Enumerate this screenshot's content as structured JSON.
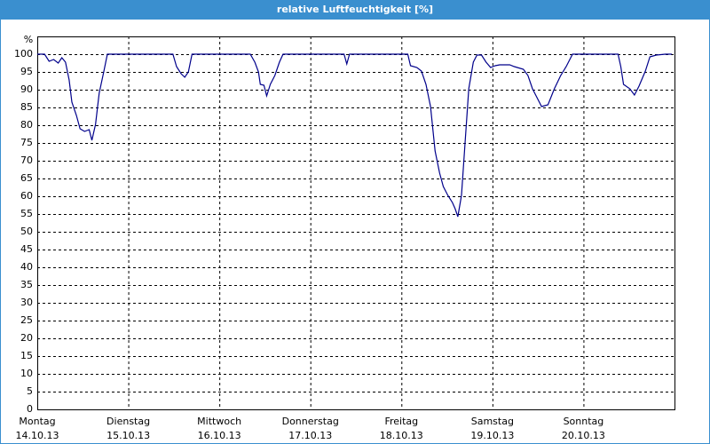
{
  "chart_data": {
    "type": "line",
    "title": "relative Luftfeuchtigkeit [%]",
    "y_unit_label": "%",
    "xlim": [
      0,
      7
    ],
    "ylim": [
      0,
      105
    ],
    "yticks": [
      0,
      5,
      10,
      15,
      20,
      25,
      30,
      35,
      40,
      45,
      50,
      55,
      60,
      65,
      70,
      75,
      80,
      85,
      90,
      95,
      100
    ],
    "xticks": [
      {
        "value": 0,
        "label": "Montag",
        "date": "14.10.13"
      },
      {
        "value": 1,
        "label": "Dienstag",
        "date": "15.10.13"
      },
      {
        "value": 2,
        "label": "Mittwoch",
        "date": "16.10.13"
      },
      {
        "value": 3,
        "label": "Donnerstag",
        "date": "17.10.13"
      },
      {
        "value": 4,
        "label": "Freitag",
        "date": "18.10.13"
      },
      {
        "value": 5,
        "label": "Samstag",
        "date": "19.10.13"
      },
      {
        "value": 6,
        "label": "Sonntag",
        "date": "20.10.13"
      }
    ],
    "grid": true,
    "series": [
      {
        "color": "#00008b",
        "x": [
          0,
          0.08,
          0.13,
          0.18,
          0.23,
          0.27,
          0.31,
          0.35,
          0.38,
          0.43,
          0.47,
          0.52,
          0.57,
          0.6,
          0.64,
          0.68,
          0.73,
          0.77,
          1.49,
          1.53,
          1.58,
          1.62,
          1.66,
          1.7,
          2.34,
          2.39,
          2.43,
          2.45,
          2.49,
          2.52,
          2.56,
          2.61,
          2.66,
          2.7,
          3.37,
          3.4,
          3.43,
          4.07,
          4.1,
          4.17,
          4.22,
          4.27,
          4.32,
          4.37,
          4.42,
          4.46,
          4.51,
          4.56,
          4.59,
          4.62,
          4.66,
          4.7,
          4.74,
          4.79,
          4.83,
          4.88,
          4.93,
          4.98,
          5.03,
          5.08,
          5.19,
          5.24,
          5.34,
          5.39,
          5.44,
          5.49,
          5.54,
          5.61,
          5.68,
          5.75,
          5.81,
          5.88,
          6.38,
          6.41,
          6.44,
          6.51,
          6.56,
          6.61,
          6.68,
          6.73,
          6.8,
          6.9,
          6.97
        ],
        "values": [
          100,
          100,
          98,
          98.5,
          97.5,
          99,
          97.75,
          92.75,
          86.5,
          82.75,
          79,
          78.25,
          78.75,
          75.75,
          80.25,
          89,
          95,
          100,
          100,
          96.5,
          94.5,
          93.5,
          95,
          100,
          100,
          97.75,
          95,
          91.5,
          91.25,
          88.25,
          91.5,
          94,
          97.75,
          100,
          100,
          97.25,
          100,
          100,
          96.75,
          96.25,
          95.25,
          91.5,
          85.25,
          72.75,
          66.5,
          62.75,
          60.25,
          58.25,
          56.5,
          54.25,
          60.25,
          75.25,
          90.25,
          97.75,
          99.75,
          99.75,
          97.75,
          96.25,
          96.75,
          97,
          97,
          96.5,
          95.75,
          94,
          90.25,
          87.75,
          85.25,
          85.75,
          90.25,
          94,
          96.5,
          100,
          100,
          96.5,
          91.5,
          90.25,
          88.5,
          91,
          95.25,
          99.25,
          99.75,
          100,
          100
        ]
      }
    ]
  }
}
